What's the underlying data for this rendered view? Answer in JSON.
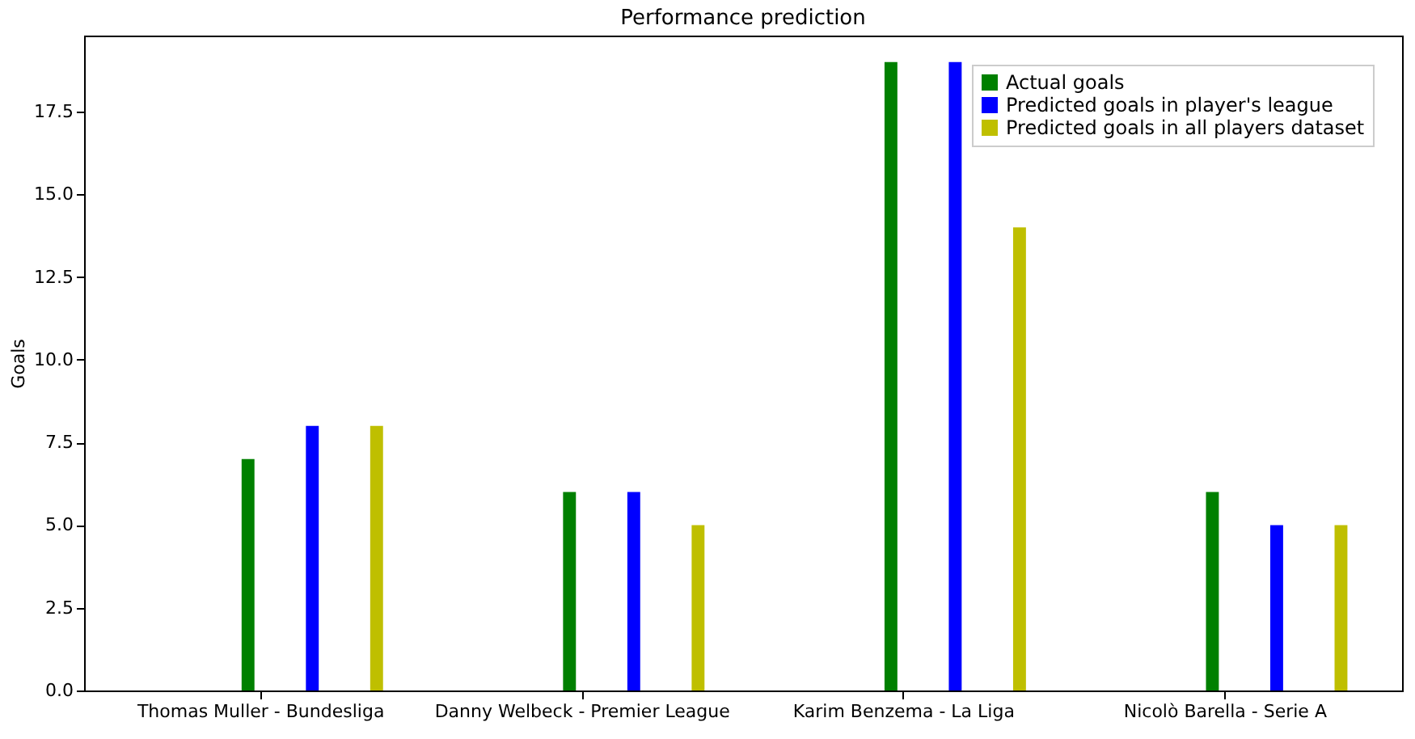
{
  "chart_data": {
    "type": "bar",
    "title": "Performance prediction",
    "ylabel": "Goals",
    "categories": [
      "Thomas Muller - Bundesliga",
      "Danny Welbeck - Premier League",
      "Karim Benzema - La Liga",
      "Nicolò Barella - Serie A"
    ],
    "series": [
      {
        "name": "Actual goals",
        "color": "#008000",
        "values": [
          7,
          6,
          19,
          6
        ]
      },
      {
        "name": "Predicted goals in player's league",
        "color": "#0000ff",
        "values": [
          8,
          6,
          19,
          5
        ]
      },
      {
        "name": "Predicted goals in all players dataset",
        "color": "#bfbf00",
        "values": [
          8,
          5,
          14,
          5
        ]
      }
    ],
    "ylim": [
      0,
      19.8
    ],
    "yticks": [
      {
        "value": 0,
        "label": "0.0"
      },
      {
        "value": 2.5,
        "label": "2.5"
      },
      {
        "value": 5,
        "label": "5.0"
      },
      {
        "value": 7.5,
        "label": "7.5"
      },
      {
        "value": 10,
        "label": "10.0"
      },
      {
        "value": 12.5,
        "label": "12.5"
      },
      {
        "value": 15,
        "label": "15.0"
      },
      {
        "value": 17.5,
        "label": "17.5"
      }
    ],
    "grid": false,
    "legend": "top right"
  }
}
